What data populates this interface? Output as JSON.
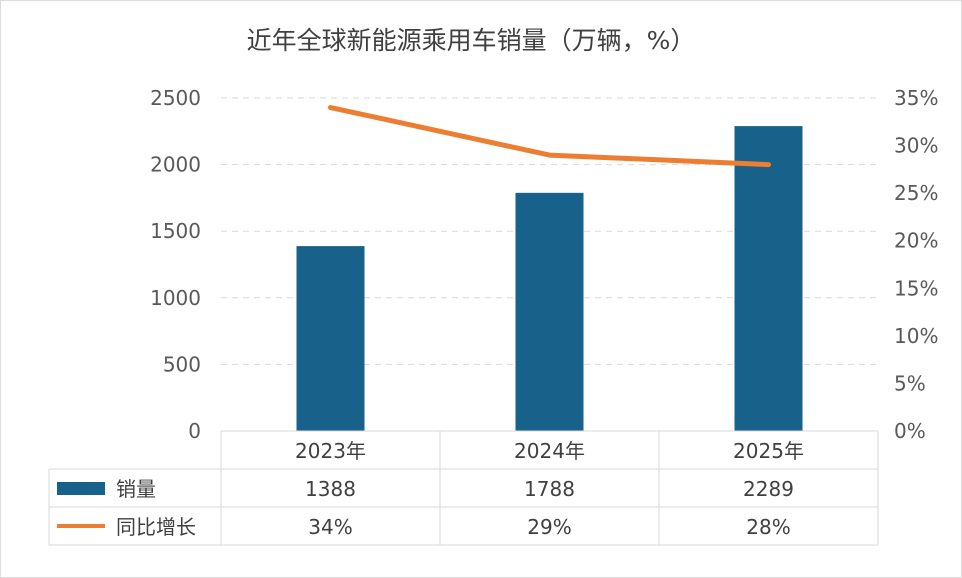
{
  "chart_data": {
    "type": "bar+line",
    "title": "近年全球新能源乘用车销量（万辆，%）",
    "categories": [
      "2023年",
      "2024年",
      "2025年"
    ],
    "y_left": {
      "min": 0,
      "max": 2500,
      "ticks": [
        "0",
        "500",
        "1000",
        "1500",
        "2000",
        "2500"
      ]
    },
    "y_right": {
      "min": 0,
      "max": 35,
      "ticks": [
        "0%",
        "5%",
        "10%",
        "15%",
        "20%",
        "25%",
        "30%",
        "35%"
      ]
    },
    "grid": true,
    "series": [
      {
        "name": "销量",
        "kind": "bar",
        "axis": "left",
        "color": "#17618a",
        "values": [
          1388,
          1788,
          2289
        ],
        "labels": [
          "1388",
          "1788",
          "2289"
        ]
      },
      {
        "name": "同比增长",
        "kind": "line",
        "axis": "right",
        "color": "#ed7d31",
        "values": [
          34,
          29,
          28
        ],
        "labels": [
          "34%",
          "29%",
          "28%"
        ]
      }
    ]
  }
}
